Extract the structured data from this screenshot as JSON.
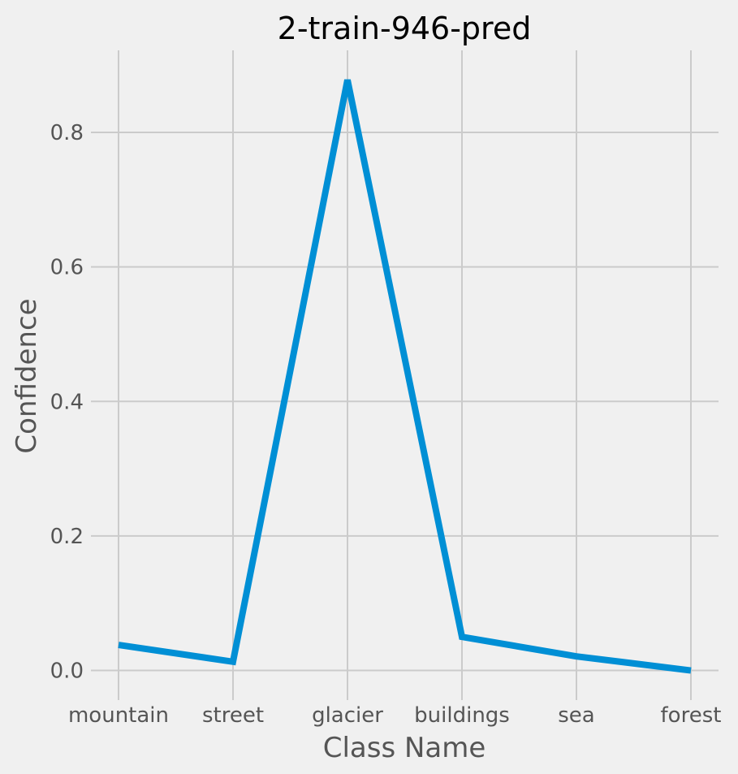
{
  "chart_data": {
    "type": "line",
    "title": "2-train-946-pred",
    "xlabel": "Class Name",
    "ylabel": "Confidence",
    "categories": [
      "mountain",
      "street",
      "glacier",
      "buildings",
      "sea",
      "forest"
    ],
    "series": [
      {
        "values": [
          0.038,
          0.013,
          0.878,
          0.05,
          0.021,
          0.0
        ]
      }
    ],
    "yticks": [
      "0.0",
      "0.2",
      "0.4",
      "0.6",
      "0.8"
    ],
    "ytick_values": [
      0.0,
      0.2,
      0.4,
      0.6,
      0.8
    ],
    "ylim": [
      -0.044,
      0.922
    ],
    "grid": true,
    "colors": {
      "line": "#008fd5",
      "background": "#f0f0f0",
      "grid": "#cbcbcb"
    }
  }
}
